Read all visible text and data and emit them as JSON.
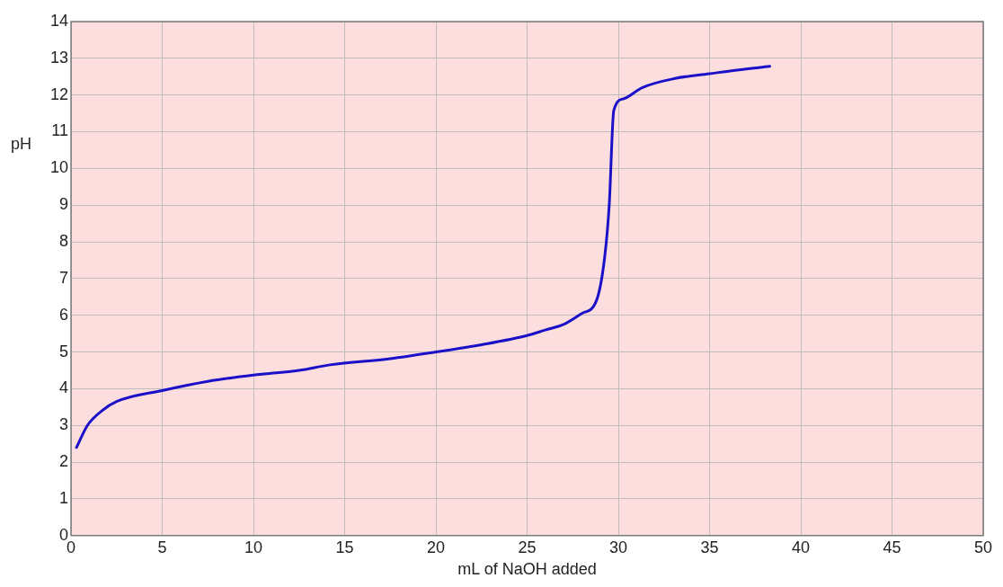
{
  "chart_data": {
    "type": "line",
    "xlabel": "mL of NaOH added",
    "ylabel": "pH",
    "x": [
      0.3,
      0.9,
      1.7,
      2.5,
      5,
      7.5,
      10,
      12.5,
      14.2,
      17.5,
      20,
      22.5,
      25,
      26,
      27,
      28,
      28.8,
      29.25,
      29.5,
      29.75,
      30.3,
      31.3,
      33.1,
      35,
      36.5,
      38.3
    ],
    "series": [
      {
        "color": "#1a10c8",
        "values": [
          2.4,
          3.0,
          3.4,
          3.65,
          3.95,
          4.2,
          4.37,
          4.5,
          4.65,
          4.82,
          5.0,
          5.2,
          5.45,
          5.6,
          5.75,
          6.05,
          6.4,
          7.58,
          9.0,
          11.58,
          11.9,
          12.2,
          12.45,
          12.58,
          12.68,
          12.78
        ]
      }
    ],
    "xlim": [
      0,
      50
    ],
    "xticks": [
      0,
      5,
      10,
      15,
      20,
      25,
      30,
      35,
      40,
      45,
      50
    ],
    "ylim": [
      0,
      14
    ],
    "yticks": [
      0,
      1,
      2,
      3,
      4,
      5,
      6,
      7,
      8,
      9,
      10,
      11,
      12,
      13,
      14
    ],
    "grid": true,
    "legend": false,
    "marker": "none",
    "line_style": "solid"
  }
}
